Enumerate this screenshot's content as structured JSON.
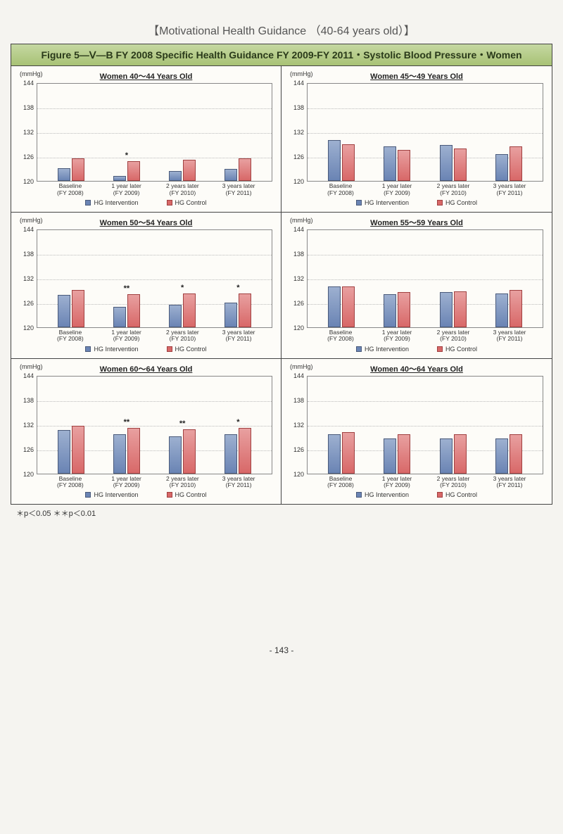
{
  "page": {
    "main_title": "【Motivational Health Guidance （40-64 years old）】",
    "figure_title": "Figure 5—Ⅴ—B  FY 2008 Specific Health Guidance FY 2009-FY 2011・Systolic Blood Pressure・Women",
    "footnote": "＊p＜0.05   ＊＊p＜0.01",
    "page_number": "- 143 -"
  },
  "axis": {
    "unit": "(mmHg)",
    "ymin": 120,
    "ymax": 144,
    "ytick_step": 6,
    "ticks": [
      120,
      126,
      132,
      138,
      144
    ]
  },
  "categories": [
    {
      "label": "Baseline",
      "sub": "(FY 2008)"
    },
    {
      "label": "1 year later",
      "sub": "(FY 2009)"
    },
    {
      "label": "2 years later",
      "sub": "(FY 2010)"
    },
    {
      "label": "3 years later",
      "sub": "(FY 2011)"
    }
  ],
  "legend": {
    "intervention": "HG Intervention",
    "control": "HG Control"
  },
  "colors": {
    "intervention": "#6a84b4",
    "control": "#d86868",
    "grid": "#bbbbbb",
    "border": "#888888",
    "background": "#fdfcf8",
    "header_bg_top": "#c6d8a2",
    "header_bg_bottom": "#a8c275"
  },
  "charts": [
    {
      "title": "Women 40～44 Years Old",
      "intervention": [
        123.2,
        121.2,
        122.5,
        123.0
      ],
      "control": [
        125.5,
        124.8,
        125.2,
        125.5
      ],
      "stars": [
        "",
        "*",
        "",
        ""
      ]
    },
    {
      "title": "Women 45～49 Years Old",
      "intervention": [
        130.0,
        128.5,
        128.7,
        126.5
      ],
      "control": [
        129.0,
        127.5,
        128.0,
        128.5
      ],
      "stars": [
        "",
        "",
        "",
        ""
      ]
    },
    {
      "title": "Women 50～54 Years Old",
      "intervention": [
        127.8,
        125.0,
        125.5,
        126.0
      ],
      "control": [
        129.0,
        128.0,
        128.2,
        128.2
      ],
      "stars": [
        "",
        "**",
        "*",
        "*"
      ]
    },
    {
      "title": "Women 55～59 Years Old",
      "intervention": [
        130.0,
        128.0,
        128.5,
        128.2
      ],
      "control": [
        130.0,
        128.5,
        128.8,
        129.0
      ],
      "stars": [
        "",
        "",
        "",
        ""
      ]
    },
    {
      "title": "Women 60～64 Years Old",
      "intervention": [
        130.5,
        129.5,
        129.0,
        129.5
      ],
      "control": [
        131.5,
        131.0,
        130.8,
        131.0
      ],
      "stars": [
        "",
        "**",
        "**",
        "*"
      ]
    },
    {
      "title": "Women 40～64 Years Old",
      "intervention": [
        129.5,
        128.5,
        128.5,
        128.5
      ],
      "control": [
        130.0,
        129.5,
        129.5,
        129.5
      ],
      "stars": [
        "",
        "",
        "",
        ""
      ]
    }
  ]
}
